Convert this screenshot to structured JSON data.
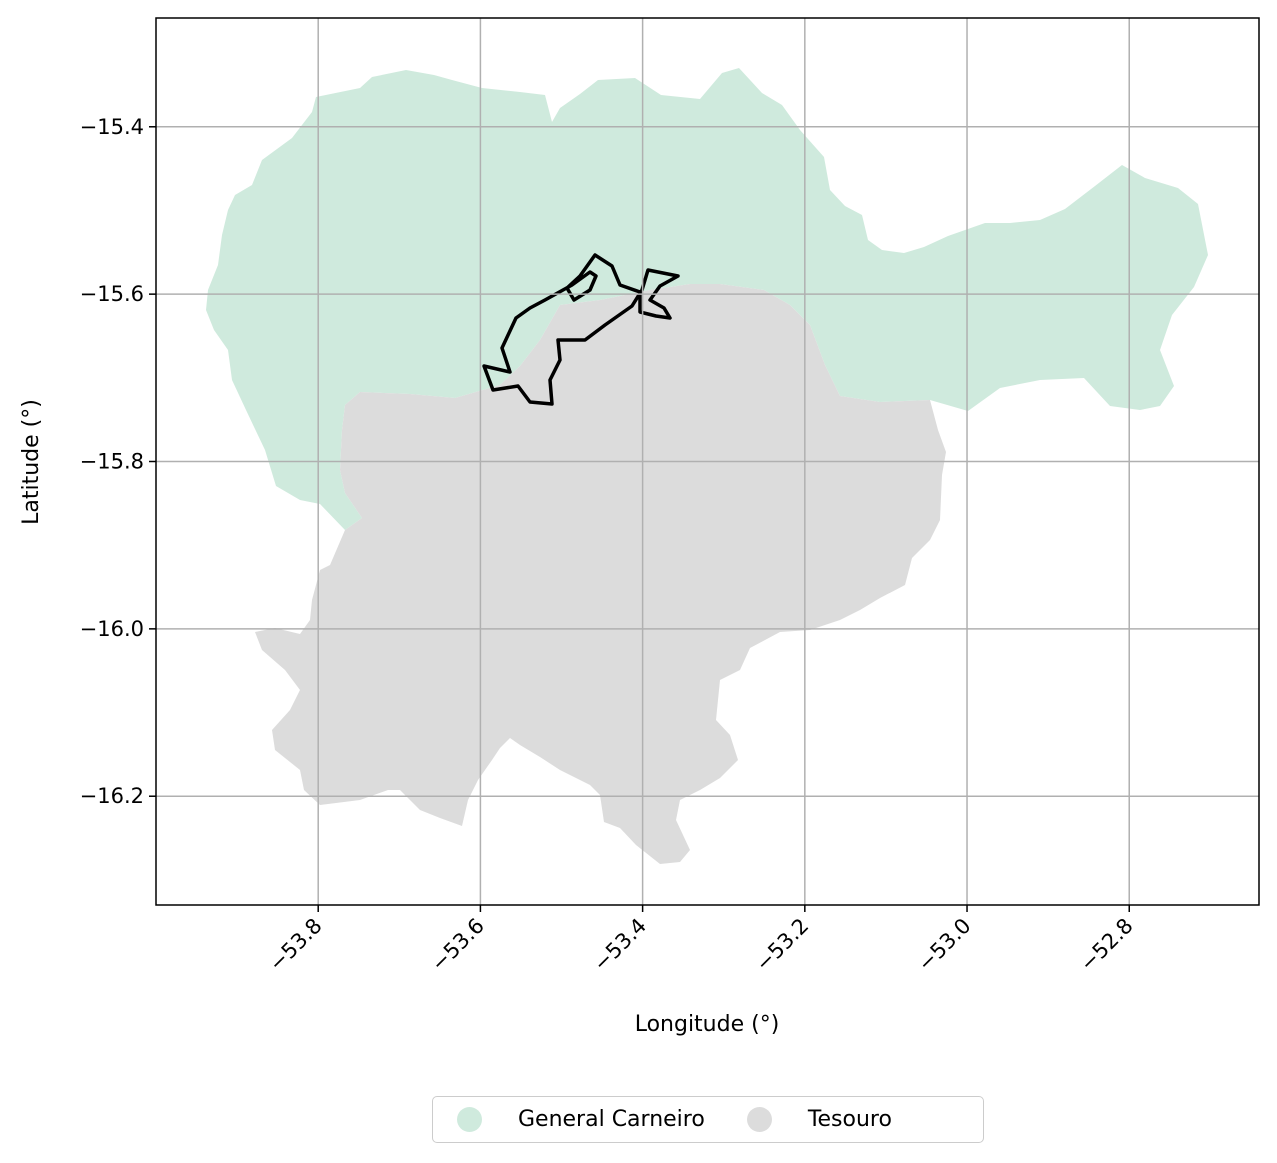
{
  "map": {
    "xlabel": "Longitude (°)",
    "ylabel": "Latitude (°)",
    "x_ticks": [
      -53.8,
      -53.6,
      -53.4,
      -53.2,
      -53.0,
      -52.8
    ],
    "x_tick_labels": [
      "−53.8",
      "−53.6",
      "−53.4",
      "−53.2",
      "−53.0",
      "−52.8"
    ],
    "y_ticks": [
      -15.4,
      -15.6,
      -15.8,
      -16.0,
      -16.2
    ],
    "y_tick_labels": [
      "−15.4",
      "−15.6",
      "−15.8",
      "−16.0",
      "−16.2"
    ],
    "xlim": [
      -54.0,
      -52.64
    ],
    "ylim": [
      -16.33,
      -15.27
    ],
    "grid": true,
    "legend_position": "bottom-center, below axes"
  },
  "legend": [
    {
      "label": "General Carneiro",
      "color": "#cfeadd"
    },
    {
      "label": "Tesouro",
      "color": "#dcdcdc"
    }
  ],
  "colors": {
    "general_carneiro": "#cfeadd",
    "tesouro": "#dcdcdc",
    "outline": "#000000",
    "grid": "#b0b0b0"
  }
}
